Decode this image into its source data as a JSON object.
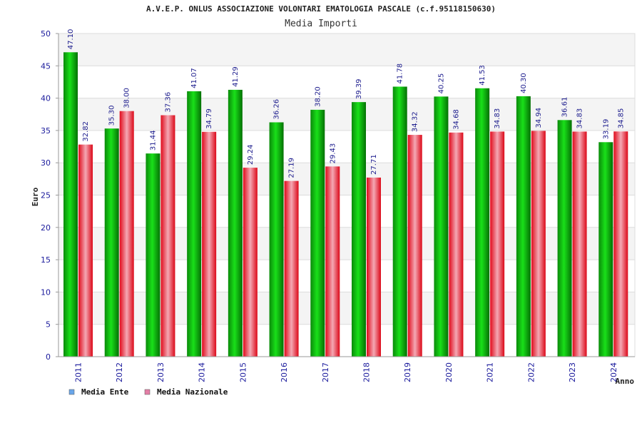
{
  "chart_data": {
    "type": "bar",
    "title": "A.V.E.P. ONLUS ASSOCIAZIONE VOLONTARI EMATOLOGIA PASCALE (c.f.95118150630)",
    "subtitle": "Media Importi",
    "xlabel": "Anno",
    "ylabel": "Euro",
    "ylim": [
      0,
      50
    ],
    "yticks": [
      "0",
      "5",
      "10",
      "15",
      "20",
      "25",
      "30",
      "35",
      "40",
      "45",
      "50"
    ],
    "categories": [
      "2011",
      "2012",
      "2013",
      "2014",
      "2015",
      "2016",
      "2017",
      "2018",
      "2019",
      "2020",
      "2021",
      "2022",
      "2023",
      "2024"
    ],
    "series": [
      {
        "name": "Media Ente",
        "legend_color": "#6aa6ea",
        "bar_color": "#10b010",
        "values": [
          47.1,
          35.3,
          31.44,
          41.07,
          41.29,
          36.26,
          38.2,
          39.39,
          41.78,
          40.25,
          41.53,
          40.3,
          36.61,
          33.19
        ],
        "labels": [
          "47.10",
          "35.30",
          "31.44",
          "41.07",
          "41.29",
          "36.26",
          "38.20",
          "39.39",
          "41.78",
          "40.25",
          "41.53",
          "40.30",
          "36.61",
          "33.19"
        ]
      },
      {
        "name": "Media Nazionale",
        "legend_color": "#e47fa6",
        "bar_color": "#e01020",
        "values": [
          32.82,
          38.0,
          37.36,
          34.79,
          29.24,
          27.19,
          29.43,
          27.71,
          34.32,
          34.68,
          34.83,
          34.94,
          34.83,
          34.85
        ],
        "labels": [
          "32.82",
          "38.00",
          "37.36",
          "34.79",
          "29.24",
          "27.19",
          "29.43",
          "27.71",
          "34.32",
          "34.68",
          "34.83",
          "34.94",
          "34.83",
          "34.85"
        ]
      }
    ],
    "grid": true,
    "legend_position": "bottom-left"
  }
}
